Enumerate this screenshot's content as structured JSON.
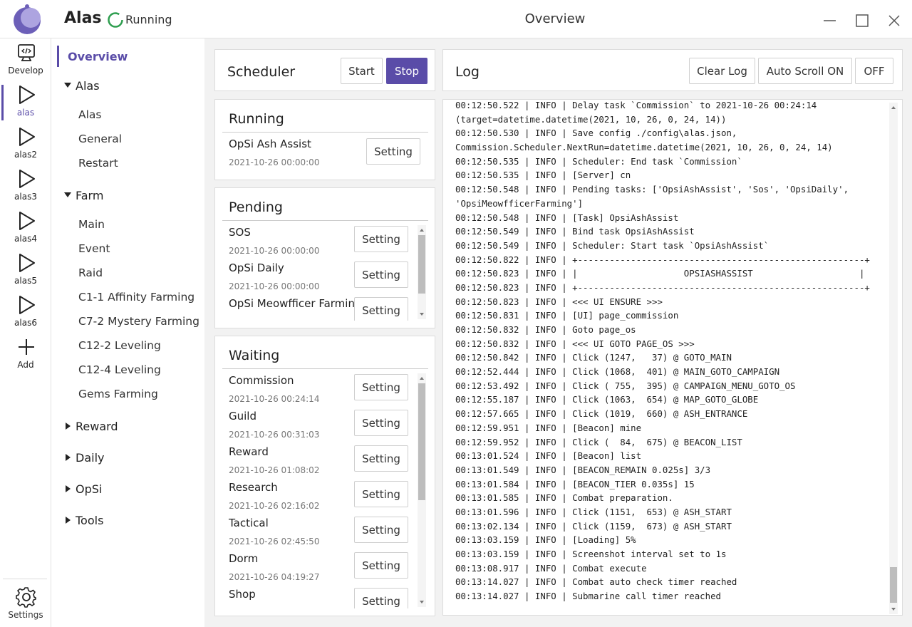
{
  "header": {
    "app_name": "Alas",
    "status": "Running",
    "page_title": "Overview"
  },
  "sidebar": {
    "instances": [
      "Develop",
      "alas",
      "alas2",
      "alas3",
      "alas4",
      "alas5",
      "alas6",
      "Add"
    ],
    "selected": 1,
    "settings": "Settings"
  },
  "nav": {
    "active": "Overview",
    "groups": [
      {
        "title": "Alas",
        "items": [
          "Alas",
          "General",
          "Restart"
        ]
      },
      {
        "title": "Farm",
        "items": [
          "Main",
          "Event",
          "Raid",
          "C1-1 Affinity Farming",
          "C7-2 Mystery Farming",
          "C12-2 Leveling",
          "C12-4 Leveling",
          "Gems Farming"
        ]
      },
      {
        "title": "Reward",
        "items": []
      },
      {
        "title": "Daily",
        "items": []
      },
      {
        "title": "OpSi",
        "items": []
      },
      {
        "title": "Tools",
        "items": []
      }
    ]
  },
  "scheduler": {
    "title": "Scheduler",
    "buttons": [
      "Start",
      "Stop"
    ]
  },
  "setting_button": "Setting",
  "running": {
    "title": "Running",
    "tasks": [
      {
        "name": "OpSi Ash Assist",
        "next_run": "2021-10-26 00:00:00"
      }
    ]
  },
  "pending": {
    "title": "Pending",
    "tasks": [
      {
        "name": "SOS",
        "next_run": "2021-10-26 00:00:00"
      },
      {
        "name": "OpSi Daily",
        "next_run": "2021-10-26 00:00:00"
      },
      {
        "name": "OpSi Meowfficer Farming"
      }
    ]
  },
  "waiting": {
    "title": "Waiting",
    "tasks": [
      {
        "name": "Commission",
        "next_run": "2021-10-26 00:24:14"
      },
      {
        "name": "Guild",
        "next_run": "2021-10-26 00:31:03"
      },
      {
        "name": "Reward",
        "next_run": "2021-10-26 01:08:02"
      },
      {
        "name": "Research",
        "next_run": "2021-10-26 02:16:02"
      },
      {
        "name": "Tactical",
        "next_run": "2021-10-26 02:45:50"
      },
      {
        "name": "Dorm",
        "next_run": "2021-10-26 04:19:27"
      },
      {
        "name": "Shop"
      }
    ]
  },
  "log": {
    "title": "Log",
    "buttons": [
      "Clear Log",
      "Auto Scroll ON",
      "OFF"
    ],
    "lines": [
      "00:12:50.522 | INFO | Delay task `Commission` to 2021-10-26 00:24:14",
      "(target=datetime.datetime(2021, 10, 26, 0, 24, 14))",
      "00:12:50.530 | INFO | Save config ./config\\alas.json,",
      "Commission.Scheduler.NextRun=datetime.datetime(2021, 10, 26, 0, 24, 14)",
      "00:12:50.535 | INFO | Scheduler: End task `Commission`",
      "00:12:50.535 | INFO | [Server] cn",
      "00:12:50.548 | INFO | Pending tasks: ['OpsiAshAssist', 'Sos', 'OpsiDaily',",
      "'OpsiMeowfficerFarming']",
      "00:12:50.548 | INFO | [Task] OpsiAshAssist",
      "00:12:50.549 | INFO | Bind task OpsiAshAssist",
      "00:12:50.549 | INFO | Scheduler: Start task `OpsiAshAssist`",
      "00:12:50.822 | INFO | +------------------------------------------------------+",
      "00:12:50.823 | INFO | |                    OPSIASHASSIST                    |",
      "00:12:50.823 | INFO | +------------------------------------------------------+",
      "00:12:50.823 | INFO | <<< UI ENSURE >>>",
      "00:12:50.831 | INFO | [UI] page_commission",
      "00:12:50.832 | INFO | Goto page_os",
      "00:12:50.832 | INFO | <<< UI GOTO PAGE_OS >>>",
      "00:12:50.842 | INFO | Click (1247,   37) @ GOTO_MAIN",
      "00:12:52.444 | INFO | Click (1068,  401) @ MAIN_GOTO_CAMPAIGN",
      "00:12:53.492 | INFO | Click ( 755,  395) @ CAMPAIGN_MENU_GOTO_OS",
      "00:12:55.187 | INFO | Click (1063,  654) @ MAP_GOTO_GLOBE",
      "00:12:57.665 | INFO | Click (1019,  660) @ ASH_ENTRANCE",
      "00:12:59.951 | INFO | [Beacon] mine",
      "00:12:59.952 | INFO | Click (  84,  675) @ BEACON_LIST",
      "00:13:01.524 | INFO | [Beacon] list",
      "00:13:01.549 | INFO | [BEACON_REMAIN 0.025s] 3/3",
      "00:13:01.584 | INFO | [BEACON_TIER 0.035s] 15",
      "00:13:01.585 | INFO | Combat preparation.",
      "00:13:01.596 | INFO | Click (1151,  653) @ ASH_START",
      "00:13:02.134 | INFO | Click (1159,  673) @ ASH_START",
      "00:13:03.159 | INFO | [Loading] 5%",
      "00:13:03.159 | INFO | Screenshot interval set to 1s",
      "00:13:08.917 | INFO | Combat execute",
      "00:13:14.027 | INFO | Combat auto check timer reached",
      "00:13:14.027 | INFO | Submarine call timer reached"
    ]
  }
}
